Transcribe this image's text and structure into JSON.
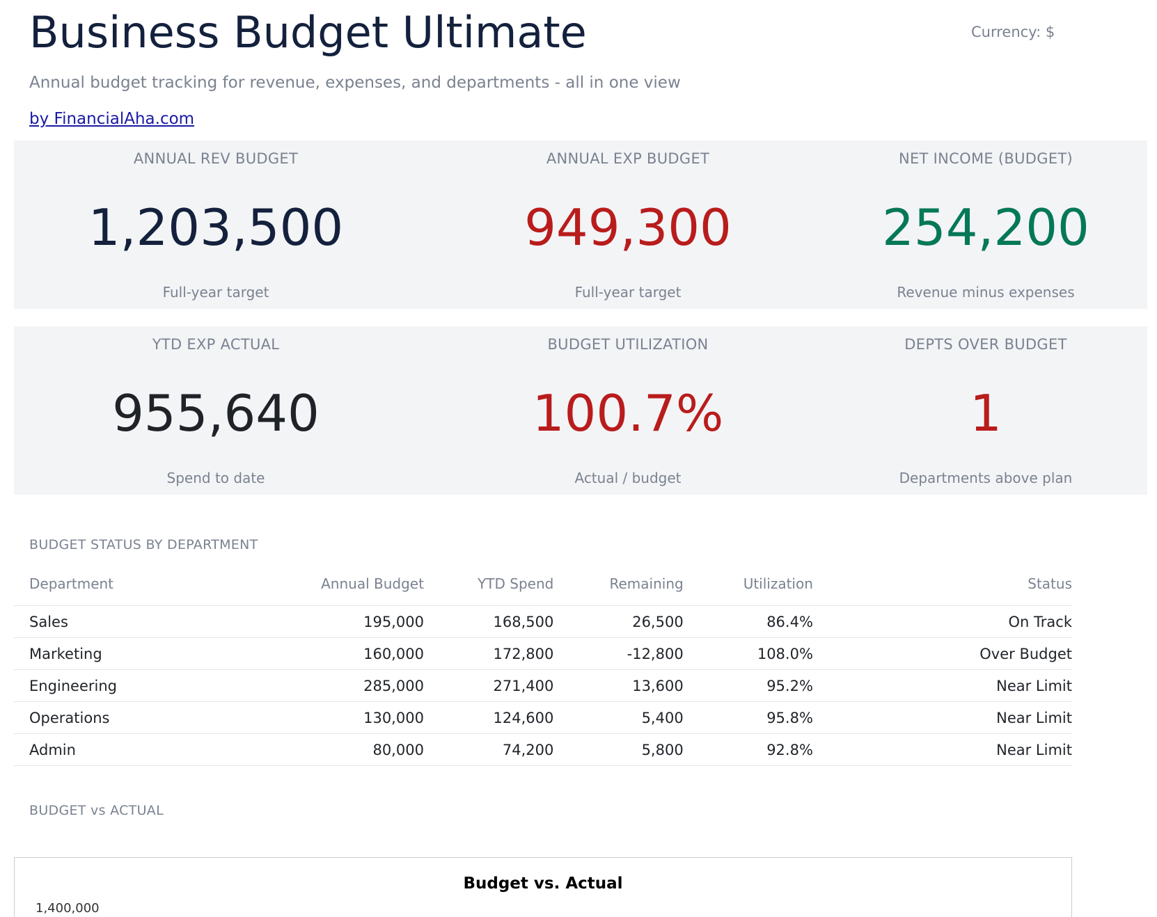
{
  "header": {
    "title": "Business Budget Ultimate",
    "currency": "Currency: $",
    "subtitle": "Annual budget tracking for revenue, expenses, and departments - all in one view",
    "byline": "by FinancialAha.com"
  },
  "kpis": [
    {
      "label": "ANNUAL REV BUDGET",
      "value": "1,203,500",
      "note": "Full-year target",
      "color": "#14213d"
    },
    {
      "label": "ANNUAL EXP BUDGET",
      "value": "949,300",
      "note": "Full-year target",
      "color": "#b91c1c"
    },
    {
      "label": "NET INCOME (BUDGET)",
      "value": "254,200",
      "note": "Revenue minus expenses",
      "color": "#047857"
    },
    {
      "label": "YTD EXP ACTUAL",
      "value": "955,640",
      "note": "Spend to date",
      "color": "#1f2328"
    },
    {
      "label": "BUDGET UTILIZATION",
      "value": "100.7%",
      "note": "Actual / budget",
      "color": "#b91c1c"
    },
    {
      "label": "DEPTS OVER BUDGET",
      "value": "1",
      "note": "Departments above plan",
      "color": "#b91c1c"
    }
  ],
  "status_section": {
    "label": "BUDGET STATUS BY DEPARTMENT",
    "columns": [
      "Department",
      "Annual Budget",
      "YTD Spend",
      "Remaining",
      "Utilization",
      "Status"
    ],
    "rows": [
      [
        "Sales",
        "195,000",
        "168,500",
        "26,500",
        "86.4%",
        "On Track"
      ],
      [
        "Marketing",
        "160,000",
        "172,800",
        "-12,800",
        "108.0%",
        "Over Budget"
      ],
      [
        "Engineering",
        "285,000",
        "271,400",
        "13,600",
        "95.2%",
        "Near Limit"
      ],
      [
        "Operations",
        "130,000",
        "124,600",
        "5,400",
        "95.8%",
        "Near Limit"
      ],
      [
        "Admin",
        "80,000",
        "74,200",
        "5,800",
        "92.8%",
        "Near Limit"
      ]
    ]
  },
  "chart_section": {
    "label": "BUDGET vs ACTUAL",
    "chart_title": "Budget vs. Actual",
    "first_tick": "1,400,000"
  }
}
